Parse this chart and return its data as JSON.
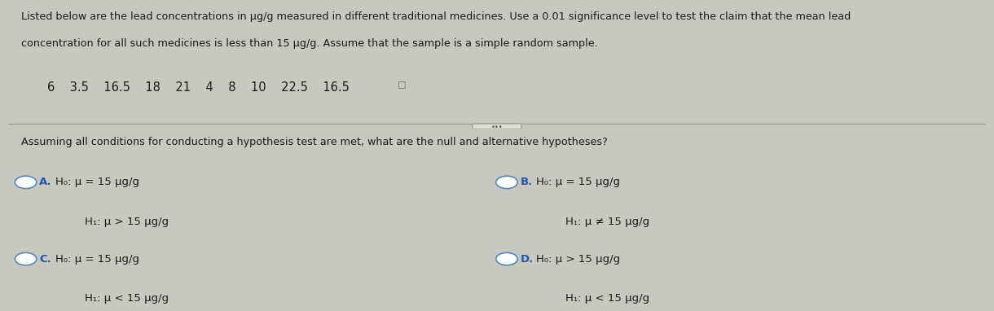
{
  "bg_color": "#c8c8c0",
  "top_bg": "#c8c8c0",
  "bottom_bg": "#d8d8d0",
  "text_color": "#1a1a1a",
  "header_text_line1": "Listed below are the lead concentrations in μg/g measured in different traditional medicines. Use a 0.01 significance level to test the claim that the mean lead",
  "header_text_line2": "concentration for all such medicines is less than 15 μg/g. Assume that the sample is a simple random sample.",
  "data_line": "6    3.5    16.5    18    21    4    8    10    22.5    16.5",
  "question_text": "Assuming all conditions for conducting a hypothesis test are met, what are the null and alternative hypotheses?",
  "option_A_label": "A.",
  "option_A_h0": "H₀: μ = 15 μg/g",
  "option_A_h1": "H₁: μ > 15 μg/g",
  "option_B_label": "B.",
  "option_B_h0": "H₀: μ = 15 μg/g",
  "option_B_h1": "H₁: μ ≠ 15 μg/g",
  "option_C_label": "C.",
  "option_C_h0": "H₀: μ = 15 μg/g",
  "option_C_h1": "H₁: μ < 15 μg/g",
  "option_D_label": "D.",
  "option_D_h0": "H₀: μ > 15 μg/g",
  "option_D_h1": "H₁: μ < 15 μg/g",
  "circle_color": "#5588bb",
  "label_color": "#2255aa",
  "divider_color": "#999990"
}
